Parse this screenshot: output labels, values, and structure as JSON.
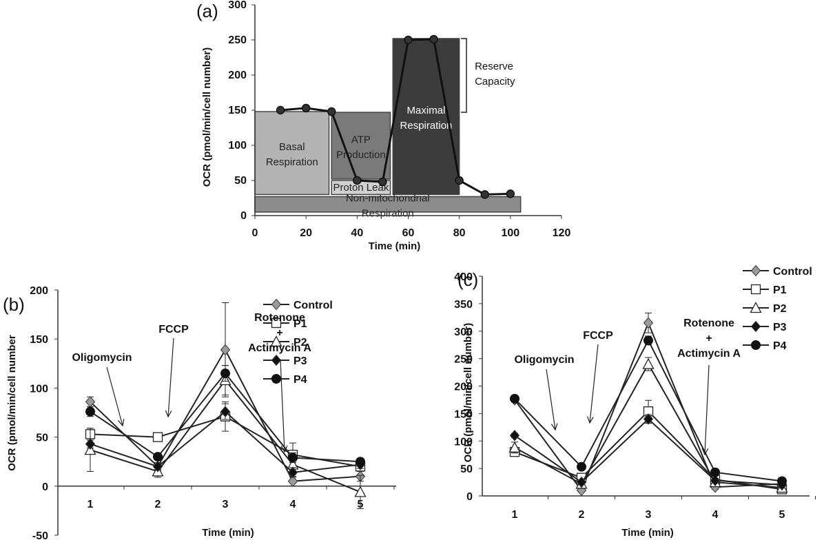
{
  "chart_data": [
    {
      "panel": "(a)",
      "type": "line",
      "xlabel": "Time (min)",
      "ylabel": "OCR (pmol/min/cell number)",
      "xlim": [
        0,
        120
      ],
      "ylim": [
        0,
        300
      ],
      "xticks": [
        0,
        20,
        40,
        60,
        80,
        100,
        120
      ],
      "yticks": [
        0,
        50,
        100,
        150,
        200,
        250,
        300
      ],
      "grid": false,
      "x": [
        10,
        20,
        30,
        40,
        50,
        60,
        70,
        80,
        90,
        100
      ],
      "values": [
        150,
        153,
        148,
        50,
        48,
        250,
        251,
        50,
        30,
        31
      ],
      "regions": [
        {
          "label": "Basal Respiration",
          "x0": 0,
          "x1": 29,
          "y0": 30,
          "y1": 148,
          "color": "#b3b3b3",
          "label_color": "#222222"
        },
        {
          "label": "ATP Production",
          "x0": 30,
          "x1": 53,
          "y0": 52,
          "y1": 147,
          "color": "#7a7a7a",
          "label_color": "#222222"
        },
        {
          "label": "Proton Leak",
          "x0": 30,
          "x1": 53,
          "y0": 30,
          "y1": 50,
          "color": "#d0d0d0",
          "label_color": "#222222"
        },
        {
          "label": "Maximal Respiration",
          "x0": 54,
          "x1": 80,
          "y0": 30,
          "y1": 252,
          "color": "#3c3c3c",
          "label_color": "#ffffff"
        },
        {
          "label": "Non-mitochondrial Respiration",
          "x0": 0,
          "x1": 104,
          "y0": 5,
          "y1": 27,
          "color": "#8c8c8c",
          "label_color": "#222222"
        }
      ],
      "annotations": [
        {
          "label": "Reserve Capacity",
          "x": 82,
          "y0": 147,
          "y1": 252
        }
      ]
    },
    {
      "panel": "(b)",
      "type": "line",
      "xlabel": "Time (min)",
      "ylabel": "OCR (pmol/min/cell number",
      "ylim": [
        -50,
        200
      ],
      "yticks": [
        -50,
        0,
        50,
        100,
        150,
        200
      ],
      "categories": [
        "1",
        "2",
        "3",
        "4",
        "5"
      ],
      "grid": false,
      "legend": "top-right",
      "series": [
        {
          "name": "Control",
          "marker": "diamond-gray",
          "values": [
            86,
            20,
            139,
            5,
            10
          ],
          "err": [
            5,
            4,
            48,
            5,
            5
          ]
        },
        {
          "name": "P1",
          "marker": "square-open",
          "values": [
            53,
            50,
            71,
            32,
            20
          ],
          "err": [
            6,
            3,
            15,
            12,
            4
          ]
        },
        {
          "name": "P2",
          "marker": "triangle-open",
          "values": [
            37,
            15,
            108,
            22,
            -6
          ],
          "err": [
            22,
            6,
            15,
            10,
            17
          ]
        },
        {
          "name": "P3",
          "marker": "diamond-black",
          "values": [
            43,
            20,
            76,
            14,
            22
          ],
          "err": [
            4,
            3,
            8,
            5,
            4
          ]
        },
        {
          "name": "P4",
          "marker": "circle-black",
          "values": [
            76,
            30,
            115,
            29,
            25
          ],
          "err": [
            5,
            3,
            8,
            5,
            3
          ]
        }
      ],
      "annotations": [
        {
          "label": "Oligomycin",
          "between": [
            1,
            2
          ]
        },
        {
          "label": "FCCP",
          "between": [
            2,
            3
          ]
        },
        {
          "label": "Rotenone",
          "line2": "+",
          "line3": "Actimycin A",
          "between": [
            4,
            5
          ]
        }
      ]
    },
    {
      "panel": "(c)",
      "type": "line",
      "xlabel": "Time (min)",
      "ylabel": "OCR (pmol/min/cell number)",
      "ylim": [
        0,
        400
      ],
      "yticks": [
        0,
        50,
        100,
        150,
        200,
        250,
        300,
        350,
        400
      ],
      "categories": [
        "1",
        "2",
        "3",
        "4",
        "5"
      ],
      "grid": false,
      "legend": "top-right",
      "series": [
        {
          "name": "Control",
          "marker": "diamond-gray",
          "values": [
            175,
            10,
            315,
            16,
            22
          ],
          "err": [
            4,
            3,
            18,
            4,
            4
          ]
        },
        {
          "name": "P1",
          "marker": "square-open",
          "values": [
            80,
            33,
            154,
            30,
            12
          ],
          "err": [
            5,
            3,
            20,
            4,
            3
          ]
        },
        {
          "name": "P2",
          "marker": "triangle-open",
          "values": [
            88,
            22,
            240,
            25,
            15
          ],
          "err": [
            10,
            4,
            12,
            4,
            3
          ]
        },
        {
          "name": "P3",
          "marker": "diamond-black",
          "values": [
            110,
            25,
            140,
            28,
            20
          ],
          "err": [
            4,
            3,
            8,
            4,
            3
          ]
        },
        {
          "name": "P4",
          "marker": "circle-black",
          "values": [
            177,
            53,
            283,
            43,
            27
          ],
          "err": [
            4,
            3,
            8,
            4,
            3
          ]
        }
      ],
      "annotations": [
        {
          "label": "Oligomycin",
          "between": [
            1,
            2
          ]
        },
        {
          "label": "FCCP",
          "between": [
            2,
            3
          ]
        },
        {
          "label": "Rotenone",
          "line2": "+",
          "line3": "Actimycin A",
          "between": [
            4,
            5
          ]
        }
      ]
    }
  ]
}
